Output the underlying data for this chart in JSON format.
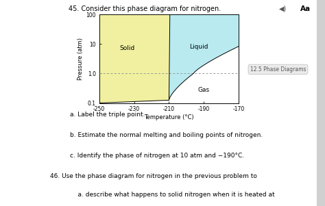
{
  "title": "45. Consider this phase diagram for nitrogen.",
  "xlabel": "Temperature (°C)",
  "ylabel": "Pressure (atm)",
  "xlim": [
    -250,
    -170
  ],
  "ylim_log": [
    0.1,
    100
  ],
  "xticks": [
    -250,
    -230,
    -210,
    -190,
    -170
  ],
  "yticks": [
    0.1,
    1.0,
    10,
    100
  ],
  "dashed_line_y": 1.0,
  "solid_color": "#f0f0a0",
  "liquid_color": "#b8eaf0",
  "gas_color": "#ffffff",
  "triple_point_T": -210,
  "triple_point_P": 0.125,
  "solid_label": "Solid",
  "liquid_label": "Liquid",
  "gas_label": "Gas",
  "section_label": "12.5 Phase Diagrams",
  "sub_q1": "a. Label the triple point.",
  "sub_q2": "b. Estimate the normal melting and boiling points of nitrogen.",
  "sub_q3": "c. Identify the phase of nitrogen at 10 atm and −190°C.",
  "q46_title": "46. Use the phase diagram for nitrogen in the previous problem to",
  "q46_a": "    a. describe what happens to solid nitrogen when it is heated at"
}
